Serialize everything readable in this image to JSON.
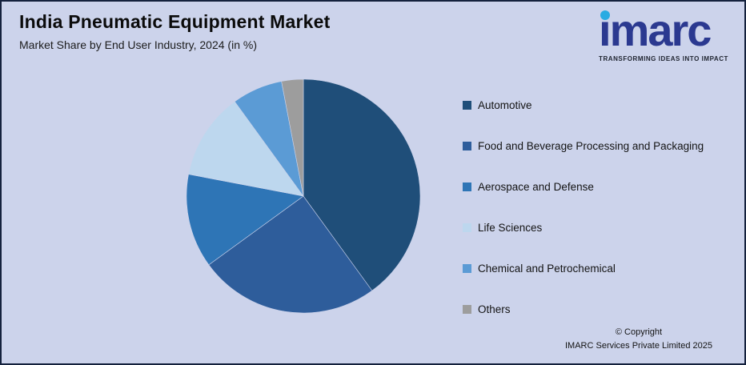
{
  "header": {
    "title": "India Pneumatic Equipment Market",
    "subtitle": "Market Share by End User Industry, 2024 (in %)"
  },
  "logo": {
    "wordmark": "imarc",
    "tagline": "TRANSFORMING IDEAS INTO IMPACT",
    "brand_color": "#2b3990",
    "dot_color": "#29abe2"
  },
  "chart_data": {
    "type": "pie",
    "title": "India Pneumatic Equipment Market",
    "subtitle": "Market Share by End User Industry, 2024 (in %)",
    "unit": "%",
    "start_angle_deg": 0,
    "direction": "clockwise",
    "legend_position": "right",
    "data_labels_shown": false,
    "slices": [
      {
        "label": "Automotive",
        "value": 40,
        "color": "#1f4e79"
      },
      {
        "label": "Food and Beverage Processing and Packaging",
        "value": 25,
        "color": "#2e5d9b"
      },
      {
        "label": "Aerospace and Defense",
        "value": 13,
        "color": "#2e75b6"
      },
      {
        "label": "Life Sciences",
        "value": 12,
        "color": "#bdd7ee"
      },
      {
        "label": "Chemical and Petrochemical",
        "value": 7,
        "color": "#5b9bd5"
      },
      {
        "label": "Others",
        "value": 3,
        "color": "#9d9d9d"
      }
    ]
  },
  "footer": {
    "copyright_line1": "© Copyright",
    "copyright_line2": "IMARC Services Private Limited 2025"
  }
}
